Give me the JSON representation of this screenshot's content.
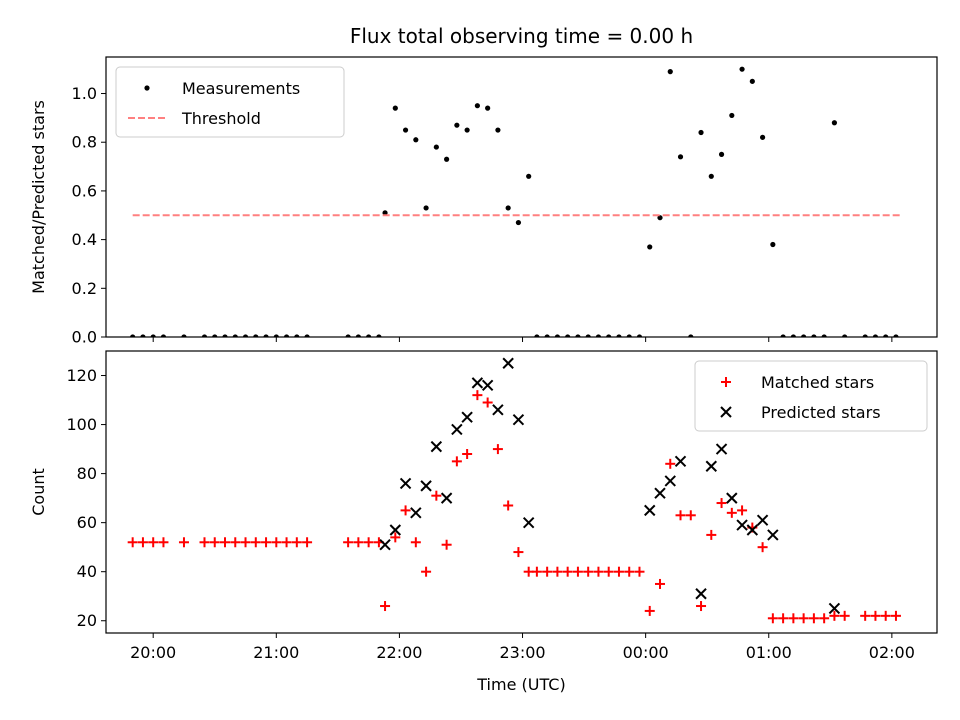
{
  "chart_data": [
    {
      "type": "scatter",
      "title": "Flux total observing time = 0.00 h",
      "xlabel": "",
      "ylabel": "Matched/Predicted stars",
      "ylim": [
        0,
        1.15
      ],
      "xlim": [
        "19:37",
        "02:22"
      ],
      "yticks": [
        "0.0",
        "0.2",
        "0.4",
        "0.6",
        "0.8",
        "1.0"
      ],
      "legend_position": "upper-left",
      "series": [
        {
          "name": "Measurements",
          "style": "dot",
          "color": "#000000",
          "points": [
            [
              "19:50",
              0
            ],
            [
              "19:55",
              0
            ],
            [
              "20:00",
              0
            ],
            [
              "20:05",
              0
            ],
            [
              "20:15",
              0
            ],
            [
              "20:25",
              0
            ],
            [
              "20:30",
              0
            ],
            [
              "20:35",
              0
            ],
            [
              "20:40",
              0
            ],
            [
              "20:45",
              0
            ],
            [
              "20:50",
              0
            ],
            [
              "20:55",
              0
            ],
            [
              "21:00",
              0
            ],
            [
              "21:05",
              0
            ],
            [
              "21:10",
              0
            ],
            [
              "21:15",
              0
            ],
            [
              "21:35",
              0
            ],
            [
              "21:40",
              0
            ],
            [
              "21:45",
              0
            ],
            [
              "21:50",
              0
            ],
            [
              "21:53",
              0.51
            ],
            [
              "21:58",
              0.94
            ],
            [
              "22:03",
              0.85
            ],
            [
              "22:08",
              0.81
            ],
            [
              "22:13",
              0.53
            ],
            [
              "22:18",
              0.78
            ],
            [
              "22:23",
              0.73
            ],
            [
              "22:28",
              0.87
            ],
            [
              "22:33",
              0.85
            ],
            [
              "22:38",
              0.95
            ],
            [
              "22:43",
              0.94
            ],
            [
              "22:48",
              0.85
            ],
            [
              "22:53",
              0.53
            ],
            [
              "22:58",
              0.47
            ],
            [
              "23:03",
              0.66
            ],
            [
              "23:07",
              0
            ],
            [
              "23:12",
              0
            ],
            [
              "23:17",
              0
            ],
            [
              "23:22",
              0
            ],
            [
              "23:27",
              0
            ],
            [
              "23:32",
              0
            ],
            [
              "23:37",
              0
            ],
            [
              "23:42",
              0
            ],
            [
              "23:47",
              0
            ],
            [
              "23:52",
              0
            ],
            [
              "23:57",
              0
            ],
            [
              "00:02",
              0.37
            ],
            [
              "00:07",
              0.49
            ],
            [
              "00:12",
              1.09
            ],
            [
              "00:17",
              0.74
            ],
            [
              "00:22",
              0
            ],
            [
              "00:27",
              0.84
            ],
            [
              "00:32",
              0.66
            ],
            [
              "00:37",
              0.75
            ],
            [
              "00:42",
              0.91
            ],
            [
              "00:47",
              1.1
            ],
            [
              "00:52",
              1.05
            ],
            [
              "00:57",
              0.82
            ],
            [
              "01:02",
              0.38
            ],
            [
              "01:07",
              0
            ],
            [
              "01:12",
              0
            ],
            [
              "01:17",
              0
            ],
            [
              "01:22",
              0
            ],
            [
              "01:27",
              0
            ],
            [
              "01:32",
              0.88
            ],
            [
              "01:37",
              0
            ],
            [
              "01:47",
              0
            ],
            [
              "01:52",
              0
            ],
            [
              "01:57",
              0
            ],
            [
              "02:02",
              0
            ]
          ]
        },
        {
          "name": "Threshold",
          "style": "dashed-line",
          "color": "#ff8080",
          "points": [
            [
              "19:50",
              0.5
            ],
            [
              "02:05",
              0.5
            ]
          ]
        }
      ]
    },
    {
      "type": "scatter",
      "title": "",
      "xlabel": "Time (UTC)",
      "ylabel": "Count",
      "ylim": [
        15,
        130
      ],
      "xlim": [
        "19:37",
        "02:22"
      ],
      "yticks": [
        "20",
        "40",
        "60",
        "80",
        "100",
        "120"
      ],
      "xticks": [
        "20:00",
        "21:00",
        "22:00",
        "23:00",
        "00:00",
        "01:00",
        "02:00"
      ],
      "legend_position": "upper-right",
      "series": [
        {
          "name": "Matched stars",
          "style": "plus",
          "color": "#ff0000",
          "points": [
            [
              "19:50",
              52
            ],
            [
              "19:55",
              52
            ],
            [
              "20:00",
              52
            ],
            [
              "20:05",
              52
            ],
            [
              "20:15",
              52
            ],
            [
              "20:25",
              52
            ],
            [
              "20:30",
              52
            ],
            [
              "20:35",
              52
            ],
            [
              "20:40",
              52
            ],
            [
              "20:45",
              52
            ],
            [
              "20:50",
              52
            ],
            [
              "20:55",
              52
            ],
            [
              "21:00",
              52
            ],
            [
              "21:05",
              52
            ],
            [
              "21:10",
              52
            ],
            [
              "21:15",
              52
            ],
            [
              "21:35",
              52
            ],
            [
              "21:40",
              52
            ],
            [
              "21:45",
              52
            ],
            [
              "21:50",
              52
            ],
            [
              "21:53",
              26
            ],
            [
              "21:58",
              54
            ],
            [
              "22:03",
              65
            ],
            [
              "22:08",
              52
            ],
            [
              "22:13",
              40
            ],
            [
              "22:18",
              71
            ],
            [
              "22:23",
              51
            ],
            [
              "22:28",
              85
            ],
            [
              "22:33",
              88
            ],
            [
              "22:38",
              112
            ],
            [
              "22:43",
              109
            ],
            [
              "22:48",
              90
            ],
            [
              "22:53",
              67
            ],
            [
              "22:58",
              48
            ],
            [
              "23:03",
              40
            ],
            [
              "23:07",
              40
            ],
            [
              "23:12",
              40
            ],
            [
              "23:17",
              40
            ],
            [
              "23:22",
              40
            ],
            [
              "23:27",
              40
            ],
            [
              "23:32",
              40
            ],
            [
              "23:37",
              40
            ],
            [
              "23:42",
              40
            ],
            [
              "23:47",
              40
            ],
            [
              "23:52",
              40
            ],
            [
              "23:57",
              40
            ],
            [
              "00:02",
              24
            ],
            [
              "00:07",
              35
            ],
            [
              "00:12",
              84
            ],
            [
              "00:17",
              63
            ],
            [
              "00:22",
              63
            ],
            [
              "00:27",
              26
            ],
            [
              "00:32",
              55
            ],
            [
              "00:37",
              68
            ],
            [
              "00:42",
              64
            ],
            [
              "00:47",
              65
            ],
            [
              "00:52",
              58
            ],
            [
              "00:57",
              50
            ],
            [
              "01:02",
              21
            ],
            [
              "01:07",
              21
            ],
            [
              "01:12",
              21
            ],
            [
              "01:17",
              21
            ],
            [
              "01:22",
              21
            ],
            [
              "01:27",
              21
            ],
            [
              "01:32",
              22
            ],
            [
              "01:37",
              22
            ],
            [
              "01:47",
              22
            ],
            [
              "01:52",
              22
            ],
            [
              "01:57",
              22
            ],
            [
              "02:02",
              22
            ]
          ]
        },
        {
          "name": "Predicted stars",
          "style": "x",
          "color": "#000000",
          "points": [
            [
              "21:53",
              51
            ],
            [
              "21:58",
              57
            ],
            [
              "22:03",
              76
            ],
            [
              "22:08",
              64
            ],
            [
              "22:13",
              75
            ],
            [
              "22:18",
              91
            ],
            [
              "22:23",
              70
            ],
            [
              "22:28",
              98
            ],
            [
              "22:33",
              103
            ],
            [
              "22:38",
              117
            ],
            [
              "22:43",
              116
            ],
            [
              "22:48",
              106
            ],
            [
              "22:53",
              125
            ],
            [
              "22:58",
              102
            ],
            [
              "23:03",
              60
            ],
            [
              "00:02",
              65
            ],
            [
              "00:07",
              72
            ],
            [
              "00:12",
              77
            ],
            [
              "00:17",
              85
            ],
            [
              "00:27",
              31
            ],
            [
              "00:32",
              83
            ],
            [
              "00:37",
              90
            ],
            [
              "00:42",
              70
            ],
            [
              "00:47",
              59
            ],
            [
              "00:52",
              57
            ],
            [
              "00:57",
              61
            ],
            [
              "01:02",
              55
            ],
            [
              "01:32",
              25
            ]
          ]
        }
      ]
    }
  ]
}
